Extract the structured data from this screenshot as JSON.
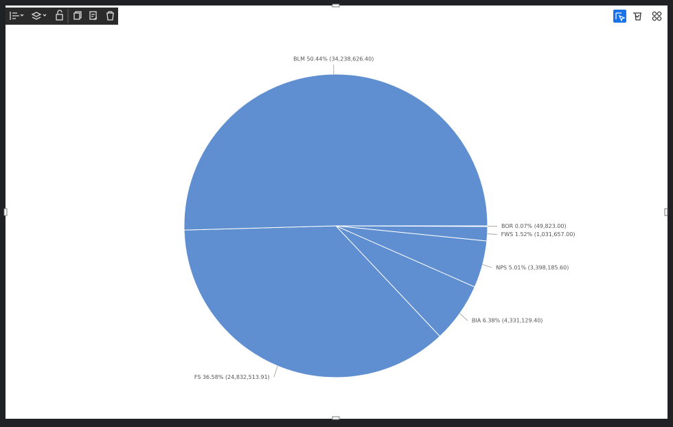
{
  "chart_data": {
    "type": "pie",
    "categories": [
      "BOR",
      "FWS",
      "NPS",
      "BIA",
      "FS",
      "BLM"
    ],
    "values": [
      49823.0,
      1031657.0,
      3398185.6,
      4331129.4,
      24832513.91,
      34238626.4
    ],
    "value_labels": [
      "BOR 0.07% (49,823.00)",
      "FWS 1.52% (1,031,657.00)",
      "NPS 5.01% (3,398,185.60)",
      "BIA 6.38% (4,331,129.40)",
      "FS 36.58% (24,832,513.91)",
      "BLM 50.44% (34,238,626.40)"
    ],
    "color": "#5f8fd0"
  }
}
